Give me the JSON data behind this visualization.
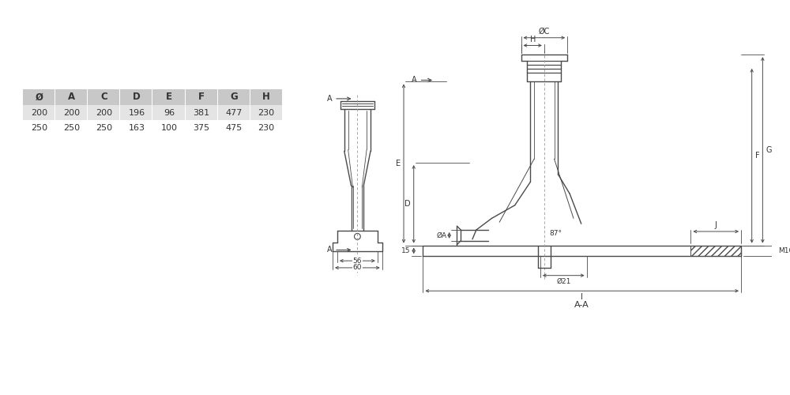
{
  "bg_color": "#ffffff",
  "line_color": "#4a4a4a",
  "dim_color": "#4a4a4a",
  "table_header_bg": "#c8c8c8",
  "table_row_bg": "#e4e4e4",
  "table_headers": [
    "Ø",
    "A",
    "C",
    "D",
    "E",
    "F",
    "G",
    "H"
  ],
  "table_row1": [
    "200",
    "200",
    "200",
    "196",
    "96",
    "381",
    "477",
    "230"
  ],
  "table_row2": [
    "250",
    "250",
    "250",
    "163",
    "100",
    "375",
    "475",
    "230"
  ],
  "text_color": "#333333",
  "hatch_color": "#4a4a4a"
}
